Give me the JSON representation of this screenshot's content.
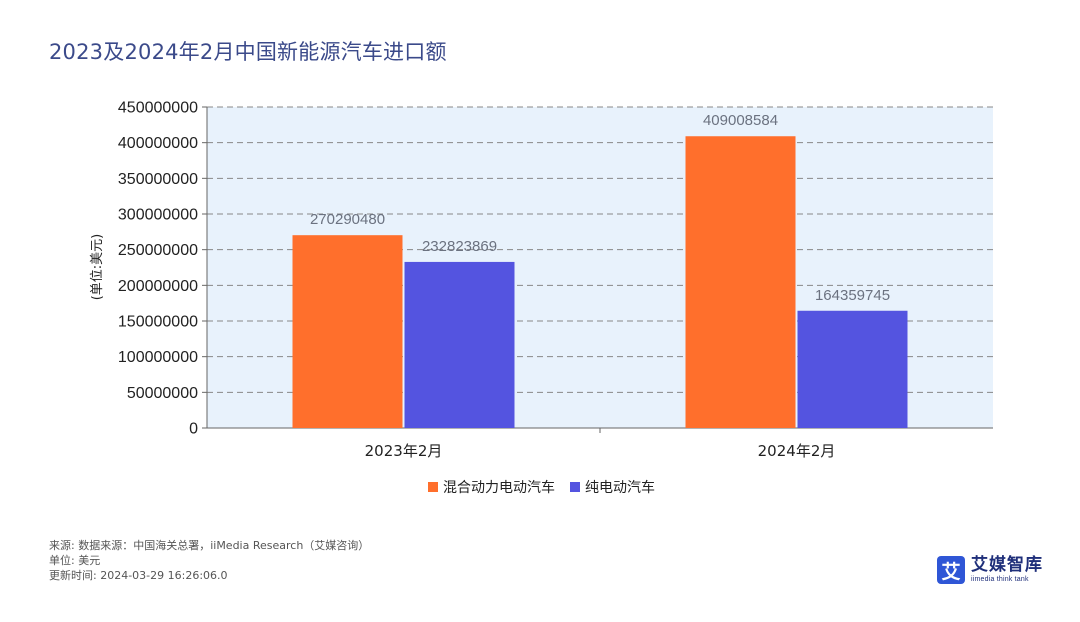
{
  "header": {
    "title": "2023及2024年2月中国新能源汽车进口额"
  },
  "chart_data": {
    "type": "bar",
    "title": "2023及2024年2月中国新能源汽车进口额",
    "xlabel": "",
    "ylabel": "(单位:美元)",
    "categories": [
      "2023年2月",
      "2024年2月"
    ],
    "series": [
      {
        "name": "混合动力电动汽车",
        "color": "#ff6f2c",
        "values": [
          270290480,
          409008584
        ]
      },
      {
        "name": "纯电动汽车",
        "color": "#5454e0",
        "values": [
          232823869,
          164359745
        ]
      }
    ],
    "ylim": [
      0,
      450000000
    ],
    "yticks": [
      "0",
      "50000000",
      "100000000",
      "150000000",
      "200000000",
      "250000000",
      "300000000",
      "350000000",
      "400000000",
      "450000000"
    ],
    "grid": true,
    "legend": "bottom"
  },
  "footer": {
    "source": "来源: 数据来源：中国海关总署，iiMedia Research（艾媒咨询）",
    "unit": "单位: 美元",
    "updated": "更新时间: 2024-03-29 16:26:06.0"
  },
  "brand": {
    "mark": "艾",
    "name_cn": "艾媒智库",
    "name_en": "iimedia think tank",
    "color": "#2f56d6"
  }
}
